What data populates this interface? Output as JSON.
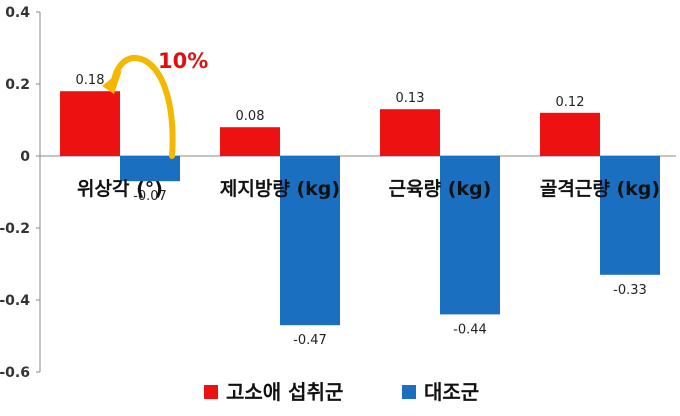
{
  "chart_data": {
    "type": "bar",
    "categories": [
      "위상각 (°)",
      "제지방량 (kg)",
      "근육량 (kg)",
      "골격근량 (kg)"
    ],
    "series": [
      {
        "name": "고소애 섭취군",
        "values": [
          0.18,
          0.08,
          0.13,
          0.12
        ],
        "labels": [
          "0.18",
          "0.08",
          "0.13",
          "0.12"
        ],
        "color": "#ee1111"
      },
      {
        "name": "대조군",
        "values": [
          -0.07,
          -0.47,
          -0.44,
          -0.33
        ],
        "labels": [
          "-0.07",
          "-0.47",
          "-0.44",
          "-0.33"
        ],
        "color": "#1b6fc1"
      }
    ],
    "ylim": [
      -0.6,
      0.4
    ],
    "yticks": [
      0.4,
      0.2,
      0,
      -0.2,
      -0.4,
      -0.6
    ],
    "ytick_labels": [
      "0.4",
      "0.2",
      "0",
      "-0.2",
      "-0.4",
      "-0.6"
    ],
    "legend_position": "bottom",
    "grid": false,
    "annotation": {
      "text": "10%",
      "color": "#dd1111",
      "arrow_color": "#f5b800"
    }
  }
}
